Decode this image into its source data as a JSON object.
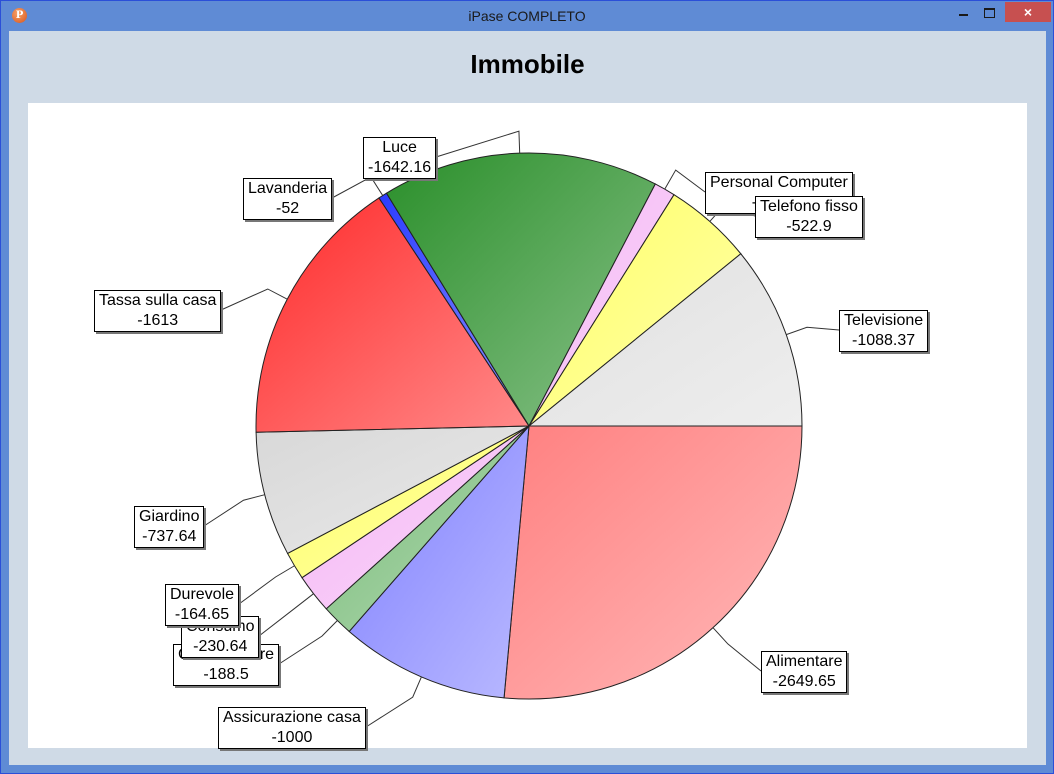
{
  "window": {
    "title": "iPase COMPLETO",
    "icon": "app-p-icon",
    "controls": {
      "minimize": "minimize-icon",
      "maximize": "maximize-icon",
      "close": "×"
    }
  },
  "chart_data": {
    "type": "pie",
    "title": "Immobile",
    "start_angle": "3 o'clock, clockwise",
    "slices": [
      {
        "label": "Alimentare",
        "value": -2649.65,
        "value_text": "-2649.65",
        "color": "#ff8080"
      },
      {
        "label": "Assicurazione casa",
        "value": -1000,
        "value_text": "-1000",
        "color": "#8080ff"
      },
      {
        "label": "Collaboratore",
        "value": -188.5,
        "value_text": "-188.5",
        "color": "#77bb77"
      },
      {
        "label": "Consumo",
        "value": -230.64,
        "value_text": "-230.64",
        "color": "#f5b6f5"
      },
      {
        "label": "Durevole",
        "value": -164.65,
        "value_text": "-164.65",
        "color": "#ffff66"
      },
      {
        "label": "Giardino",
        "value": -737.64,
        "value_text": "-737.64",
        "color": "#d8d8d8"
      },
      {
        "label": "Tassa sulla casa",
        "value": -1613,
        "value_text": "-1613",
        "color": "#ff2a2a"
      },
      {
        "label": "Lavanderia",
        "value": -52,
        "value_text": "-52",
        "color": "#2b3bff"
      },
      {
        "label": "Luce",
        "value": -1642.16,
        "value_text": "-1642.16",
        "color": "#2a8f2a"
      },
      {
        "label": "Personal Computer",
        "value": -125.89,
        "value_text": "-125.89",
        "color": "#f5b6f5"
      },
      {
        "label": "Telefono fisso",
        "value": -522.9,
        "value_text": "-522.9",
        "color": "#ffff66"
      },
      {
        "label": "Televisione",
        "value": -1088.37,
        "value_text": "-1088.37",
        "color": "#e0e0e0"
      }
    ],
    "legend": "none (callout labels)"
  }
}
